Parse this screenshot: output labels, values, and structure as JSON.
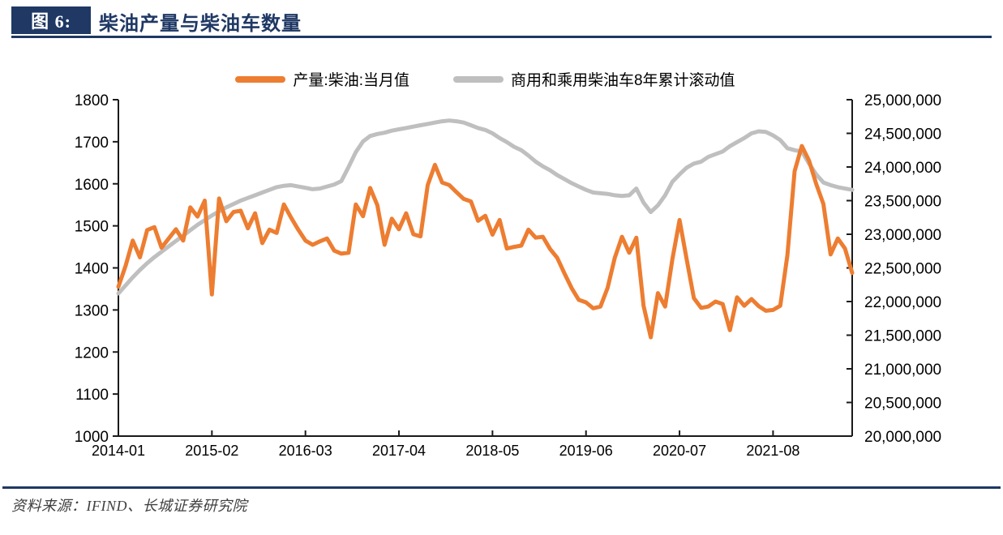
{
  "header": {
    "figure_label": "图 6:",
    "title": "柴油产量与柴油车数量",
    "accent_color": "#1F3864"
  },
  "footer": {
    "source_text": "资料来源：IFIND、长城证券研究院"
  },
  "chart_data": {
    "type": "line",
    "title": "柴油产量与柴油车数量",
    "grid": false,
    "legend_position": "top",
    "x_start": "2014-01",
    "x_frequency": "monthly",
    "x_tick_labels": [
      "2014-01",
      "2015-02",
      "2016-03",
      "2017-04",
      "2018-05",
      "2019-06",
      "2020-07",
      "2021-08"
    ],
    "x_tick_interval_months": 13,
    "left_axis": {
      "min": 1000,
      "max": 1800,
      "tick_step": 100,
      "labels": [
        "1800",
        "1700",
        "1600",
        "1500",
        "1400",
        "1300",
        "1200",
        "1100",
        "1000"
      ]
    },
    "right_axis": {
      "min": 20000000,
      "max": 25000000,
      "tick_step": 500000,
      "labels": [
        "25,000,000",
        "24,500,000",
        "24,000,000",
        "23,500,000",
        "23,000,000",
        "22,500,000",
        "22,000,000",
        "21,500,000",
        "21,000,000",
        "20,500,000",
        "20,000,000"
      ]
    },
    "axis_color": "#1a1a1a",
    "series": [
      {
        "name": "产量:柴油:当月值",
        "axis": "left",
        "color": "#ED7D31",
        "values": [
          1355,
          1405,
          1465,
          1425,
          1490,
          1497,
          1448,
          1470,
          1492,
          1465,
          1544,
          1522,
          1560,
          1337,
          1565,
          1511,
          1533,
          1536,
          1494,
          1530,
          1459,
          1491,
          1483,
          1551,
          1520,
          1491,
          1465,
          1455,
          1463,
          1470,
          1441,
          1434,
          1436,
          1551,
          1523,
          1590,
          1549,
          1455,
          1517,
          1492,
          1530,
          1480,
          1475,
          1597,
          1645,
          1603,
          1597,
          1580,
          1564,
          1558,
          1512,
          1524,
          1479,
          1514,
          1446,
          1450,
          1453,
          1491,
          1472,
          1474,
          1445,
          1424,
          1387,
          1352,
          1324,
          1318,
          1304,
          1308,
          1352,
          1424,
          1474,
          1436,
          1472,
          1310,
          1235,
          1340,
          1308,
          1420,
          1514,
          1420,
          1328,
          1305,
          1308,
          1320,
          1314,
          1252,
          1330,
          1310,
          1326,
          1309,
          1298,
          1300,
          1310,
          1430,
          1630,
          1690,
          1655,
          1600,
          1552,
          1432,
          1470,
          1446,
          1388
        ]
      },
      {
        "name": "商用和乘用柴油车8年累计滚动值",
        "axis": "right",
        "color": "#BFBFBF",
        "values": [
          22120000,
          22240000,
          22360000,
          22470000,
          22570000,
          22660000,
          22740000,
          22820000,
          22900000,
          22980000,
          23060000,
          23140000,
          23210000,
          23280000,
          23340000,
          23400000,
          23450000,
          23500000,
          23540000,
          23580000,
          23620000,
          23660000,
          23700000,
          23720000,
          23730000,
          23710000,
          23690000,
          23670000,
          23680000,
          23710000,
          23740000,
          23790000,
          24000000,
          24220000,
          24380000,
          24460000,
          24490000,
          24510000,
          24540000,
          24560000,
          24580000,
          24600000,
          24620000,
          24640000,
          24660000,
          24680000,
          24690000,
          24680000,
          24660000,
          24620000,
          24580000,
          24550000,
          24500000,
          24430000,
          24370000,
          24300000,
          24250000,
          24170000,
          24080000,
          24010000,
          23950000,
          23880000,
          23820000,
          23760000,
          23710000,
          23660000,
          23620000,
          23610000,
          23600000,
          23580000,
          23570000,
          23580000,
          23680000,
          23470000,
          23330000,
          23430000,
          23580000,
          23780000,
          23890000,
          23990000,
          24050000,
          24080000,
          24150000,
          24190000,
          24230000,
          24310000,
          24370000,
          24430000,
          24500000,
          24530000,
          24520000,
          24470000,
          24400000,
          24280000,
          24250000,
          24230000,
          24050000,
          23890000,
          23770000,
          23730000,
          23700000,
          23680000,
          23660000
        ]
      }
    ]
  }
}
